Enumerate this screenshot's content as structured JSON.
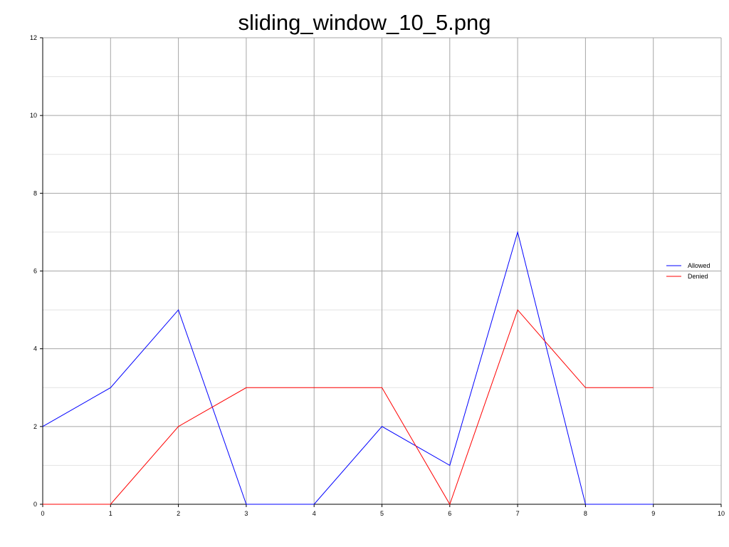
{
  "chart_data": {
    "type": "line",
    "title": "sliding_window_10_5.png",
    "xlabel": "",
    "ylabel": "",
    "xlim": [
      0,
      10
    ],
    "ylim": [
      0,
      12
    ],
    "x_ticks": [
      0,
      1,
      2,
      3,
      4,
      5,
      6,
      7,
      8,
      9,
      10
    ],
    "y_ticks": [
      0,
      2,
      4,
      6,
      8,
      10,
      12
    ],
    "y_minor_ticks": [
      1,
      3,
      5,
      7,
      9,
      11
    ],
    "x_tick_labels": [
      "0",
      "1",
      "2",
      "3",
      "4",
      "5",
      "6",
      "7",
      "8",
      "9",
      "10"
    ],
    "y_tick_labels": [
      "0",
      "2",
      "4",
      "6",
      "8",
      "10",
      "12"
    ],
    "grid": true,
    "legend_position": "right",
    "x": [
      0,
      1,
      2,
      3,
      4,
      5,
      6,
      7,
      8,
      9
    ],
    "series": [
      {
        "name": "Allowed",
        "color": "#0000ff",
        "values": [
          2,
          3,
          5,
          0,
          0,
          2,
          1,
          7,
          0,
          0
        ]
      },
      {
        "name": "Denied",
        "color": "#ff0000",
        "values": [
          0,
          0,
          2,
          3,
          3,
          3,
          0,
          5,
          3,
          3
        ]
      }
    ]
  }
}
